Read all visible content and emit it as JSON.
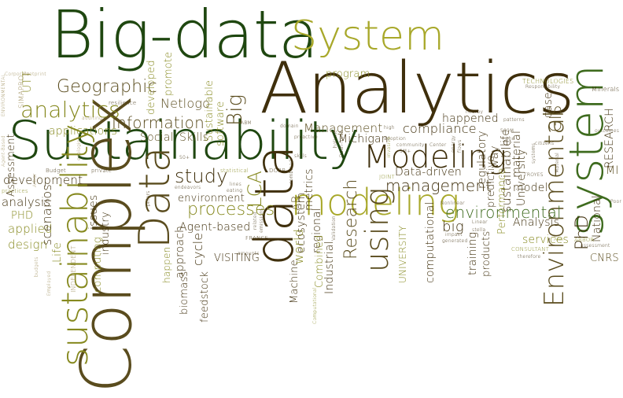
{
  "palette": {
    "dark_green": "#1f4710",
    "olive": "#86891f",
    "lime": "#a8a82a",
    "brown": "#5a4c1e",
    "dark_brown": "#3f2f0c",
    "gold": "#b09a3a",
    "tan": "#9a8a55",
    "green": "#3e6b1e"
  },
  "words": {
    "big_data": "Big-data",
    "system": "System",
    "analytics": "Analytics",
    "sustainability": "Sustainability",
    "complex": "Complex",
    "sustainability_v": "sustainability",
    "data": "Data",
    "data_lower": "data",
    "modeling": "modeling",
    "modeling_cap": "Modeling",
    "system_v": "system",
    "environmental": "Environmental",
    "analytics_lower": "analytics",
    "geographic": "Geographic",
    "information": "Information",
    "big": "Big",
    "study": "study",
    "processes": "processes",
    "management": "management",
    "environmental_lower": "environmental",
    "using": "using",
    "research": "Research",
    "lca": "LCA",
    "agent_based": "Agent-based",
    "data_driven": "Data-driven",
    "compliance": "compliance",
    "happened": "happened",
    "management_cap": "Management",
    "program": "program",
    "promote": "promote",
    "developed": "developed",
    "netlogo": "Netlogo",
    "software": "software",
    "sustainable_cap": "Sustainable",
    "skills": "Skills",
    "social": "Social",
    "applications": "applications",
    "development": "development",
    "assessment": "Assessment",
    "phd_caps": "PHD",
    "analysis": "analysis",
    "applied": "applied",
    "design": "design",
    "life": "Life",
    "scenarios": "scenarios",
    "issues": "issues",
    "industry": "industry",
    "computing": "computing",
    "approach": "approach",
    "cycle": "cycle",
    "environment": "environment",
    "visiting": "VISITING",
    "feedstock": "feedstock",
    "machine": "Machine",
    "world": "world",
    "ecosystem": "ecosystem",
    "metrics": "metrics",
    "regional": "regional",
    "combined": "Combined",
    "industrial": "Industrial",
    "michigan": "Michigan",
    "university_caps": "UNIVERSITY",
    "computational": "computational",
    "big_lower": "big",
    "regulatory": "regulatory",
    "sustainable": "sustainable",
    "predictive": "predictive",
    "training": "training",
    "products": "products",
    "performance": "Performance",
    "way": "way",
    "model": "model",
    "life_lower": "life",
    "material": "material",
    "university": "University",
    "case": "case",
    "gis": "GIS",
    "phd": "PhD",
    "national": "National",
    "research_caps": "RESEARCH",
    "mi": "MI",
    "cnrs": "CNRS",
    "services": "services",
    "analysis_cap": "Analysis",
    "happen": "happen",
    "biomass": "biomass",
    "utt": "UTT",
    "technologies": "TECHNOLOGIES",
    "minerals": "Minerals",
    "ab": "AB",
    "dorr": "DORR",
    "france": "FRANCE",
    "consultant": "CONSULTANT",
    "arbor": "ARBOR",
    "ann": "Ann",
    "joint": "JOINT",
    "independent": "INDEPENDENT",
    "simapro": "SIMAPRO",
    "troyes": "TROYES",
    "statistical": "statistical",
    "private": "private",
    "budget": "Budget",
    "practices": "practices",
    "budgets": "budgets",
    "employed": "Employed",
    "resilience": "resilience",
    "auditing": "auditing",
    "footprint": "Footprint",
    "corporate": "Corporate",
    "environmental_caps": "ENVIRONMENTAL",
    "agent_based_small": "Agent-Based",
    "arbor_small": "Arbor",
    "abm": "ABM",
    "domain": "domain",
    "proactive": "proactive",
    "fifty_plus": "50+",
    "endeavors": "endeavors",
    "pillars": "pillars",
    "lines": "lines",
    "eating": "eating",
    "combined_small": "combined",
    "related": "related",
    "emissions": "emissions",
    "high": "high",
    "adoption": "adoption",
    "community": "community",
    "center": "Center",
    "five_m": "5M+",
    "nonlinear": "Nonlinear",
    "impact": "impact",
    "generated": "generated",
    "linear": "Linear",
    "stella": "stella",
    "validation": "Validation",
    "dash_fresh": "Dash-fresh",
    "holistic": "holistic",
    "energy": "energy",
    "flows": "flows",
    "patterns": "patterns",
    "outcomes": "outcomes",
    "citizens": "citizens",
    "systems": "systems",
    "material_small": "Material",
    "responsibility": "Responsibility",
    "assessment_small": "assessment",
    "therefore": "therefore",
    "computational_small": "Computational",
    "invasive": "invasive",
    "ecologies": "ecologies",
    "poor": "Poor",
    "five_hundred_m": "500M",
    "the": "the",
    "nearby": "nearby",
    "amounts": "amounts",
    "skills_small": "skills"
  }
}
